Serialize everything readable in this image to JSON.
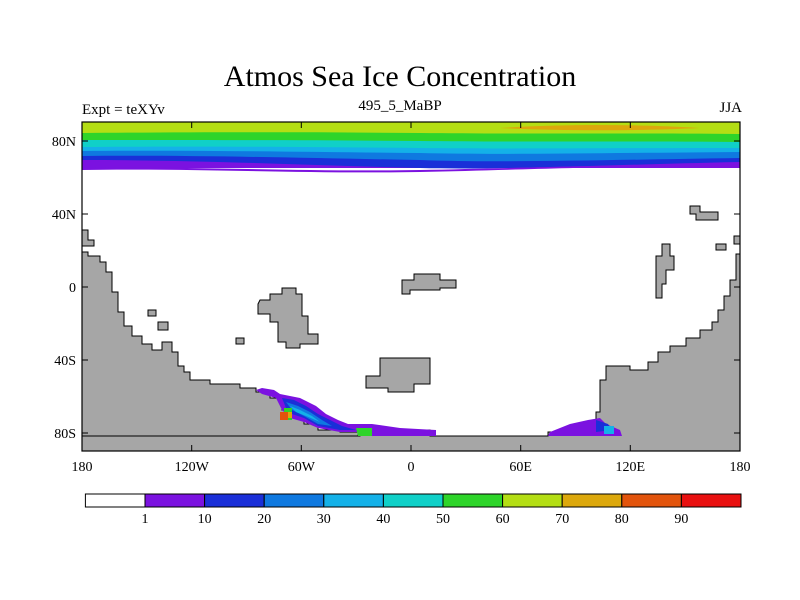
{
  "header": {
    "title": "Atmos Sea Ice Concentration",
    "experiment": "Expt = teXYv",
    "period": "495_5_MaBP",
    "season": "JJA"
  },
  "axes": {
    "y_ticks": [
      "80N",
      "40N",
      "0",
      "40S",
      "80S"
    ],
    "x_ticks": [
      "180",
      "120W",
      "60W",
      "0",
      "60E",
      "120E",
      "180"
    ]
  },
  "colorbar": {
    "colors": [
      "#ffffff",
      "#7b12e0",
      "#1a2fd8",
      "#0f79e0",
      "#14b1e8",
      "#10d0c8",
      "#2ed42a",
      "#b4de14",
      "#dca80c",
      "#e2540c",
      "#e81010"
    ],
    "labels": [
      "1",
      "10",
      "20",
      "30",
      "40",
      "50",
      "60",
      "70",
      "80",
      "90"
    ]
  },
  "colors": {
    "land": "#a6a6a6",
    "ocean": "#ffffff"
  }
}
